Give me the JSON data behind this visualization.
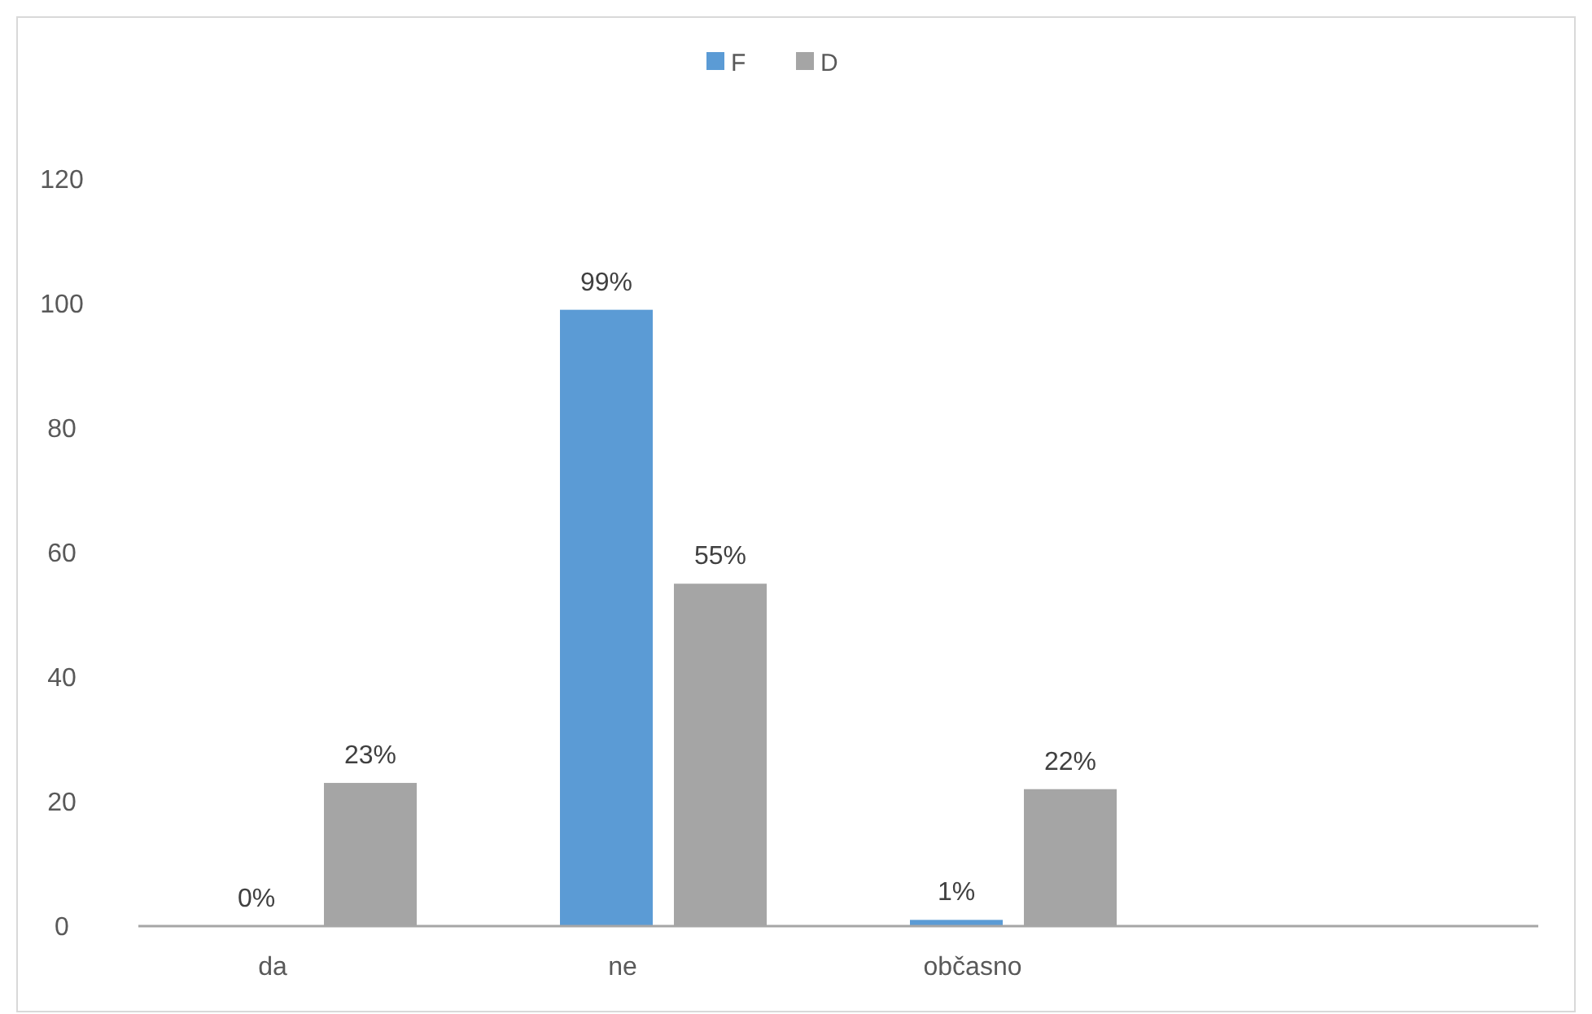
{
  "chart_data": {
    "type": "bar",
    "categories": [
      "da",
      "ne",
      "občasno",
      null
    ],
    "series": [
      {
        "name": "F",
        "color": "#5b9bd5",
        "values": [
          0,
          99,
          1,
          null
        ],
        "value_labels": [
          "0%",
          "99%",
          "1%",
          null
        ]
      },
      {
        "name": "D",
        "color": "#a5a5a5",
        "values": [
          23,
          55,
          22,
          null
        ],
        "value_labels": [
          "23%",
          "55%",
          "22%",
          null
        ]
      }
    ],
    "ylim": [
      0,
      120
    ],
    "yticks": [
      0,
      20,
      40,
      60,
      80,
      100,
      120
    ],
    "grid": false,
    "legend": "top"
  }
}
